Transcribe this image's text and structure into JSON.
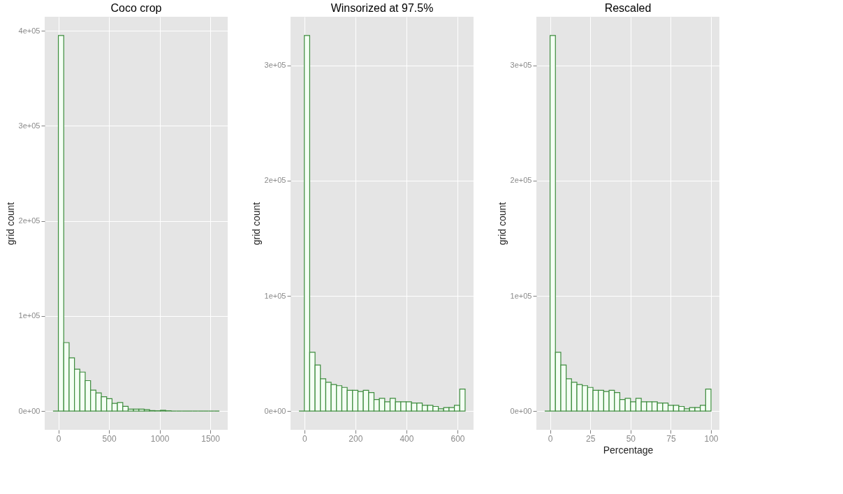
{
  "chart_data": [
    {
      "type": "histogram",
      "title": "Coco crop",
      "ylabel": "grid count",
      "bins": [
        -53,
        0,
        53,
        106,
        159,
        212,
        265,
        318,
        371,
        424,
        477,
        530,
        583,
        636,
        689,
        742,
        795,
        848,
        901,
        954,
        1007,
        1060,
        1113,
        1166,
        1219,
        1272,
        1325,
        1378,
        1431,
        1484,
        1537,
        1590
      ],
      "series": [
        {
          "color": "#3d8b3d",
          "values": [
            0,
            395000,
            72000,
            56000,
            44000,
            41000,
            32000,
            22000,
            19000,
            15000,
            13000,
            8000,
            9000,
            5000,
            2000,
            2000,
            2000,
            1500,
            500,
            300,
            800,
            300,
            0,
            0,
            0,
            0,
            0,
            0,
            0,
            0,
            0
          ]
        }
      ],
      "xlim": [
        -135,
        1672
      ],
      "xticks": [
        0,
        500,
        1000,
        1500
      ],
      "ylim": [
        -19750,
        414750
      ],
      "yticks": [
        {
          "value": 0,
          "label": "0e+00"
        },
        {
          "value": 100000,
          "label": "1e+05"
        },
        {
          "value": 200000,
          "label": "2e+05"
        },
        {
          "value": 300000,
          "label": "3e+05"
        },
        {
          "value": 400000,
          "label": "4e+05"
        }
      ],
      "grid": true
    },
    {
      "type": "histogram",
      "title": "Winsorized at 97.5%",
      "ylabel": "grid count",
      "bins": [
        -21,
        0,
        21,
        42,
        63,
        84,
        105,
        126,
        147,
        168,
        189,
        210,
        231,
        252,
        273,
        294,
        315,
        336,
        357,
        378,
        399,
        420,
        441,
        462,
        483,
        504,
        525,
        546,
        567,
        588,
        609,
        630
      ],
      "series": [
        {
          "color": "#3d8b3d",
          "values": [
            0,
            326000,
            51000,
            40000,
            28000,
            25000,
            23000,
            22000,
            20500,
            18000,
            18000,
            17000,
            18000,
            16000,
            10000,
            11000,
            8000,
            11000,
            8000,
            8000,
            8000,
            7000,
            7000,
            5000,
            5000,
            4000,
            2000,
            3000,
            3000,
            5000,
            19000
          ]
        }
      ],
      "xlim": [
        -54,
        663
      ],
      "xticks": [
        0,
        200,
        400,
        600
      ],
      "ylim": [
        -16300,
        342300
      ],
      "yticks": [
        {
          "value": 0,
          "label": "0e+00"
        },
        {
          "value": 100000,
          "label": "1e+05"
        },
        {
          "value": 200000,
          "label": "2e+05"
        },
        {
          "value": 300000,
          "label": "3e+05"
        }
      ],
      "grid": true
    },
    {
      "type": "histogram",
      "title": "Rescaled",
      "xlabel": "Percentage",
      "ylabel": "grid count",
      "bins": [
        -3.33,
        0,
        3.33,
        6.67,
        10,
        13.33,
        16.67,
        20,
        23.33,
        26.67,
        30,
        33.33,
        36.67,
        40,
        43.33,
        46.67,
        50,
        53.33,
        56.67,
        60,
        63.33,
        66.67,
        70,
        73.33,
        76.67,
        80,
        83.33,
        86.67,
        90,
        93.33,
        96.67,
        100
      ],
      "series": [
        {
          "color": "#3d8b3d",
          "values": [
            0,
            326000,
            51000,
            40000,
            28000,
            25000,
            23000,
            22000,
            20500,
            18000,
            18000,
            17000,
            18000,
            16000,
            10000,
            11000,
            8000,
            11000,
            8000,
            8000,
            8000,
            7000,
            7000,
            5000,
            5000,
            4000,
            2000,
            3000,
            3000,
            5000,
            19000
          ]
        }
      ],
      "xlim": [
        -8.5,
        105.2
      ],
      "xticks": [
        0,
        25,
        50,
        75,
        100
      ],
      "ylim": [
        -16300,
        342300
      ],
      "yticks": [
        {
          "value": 0,
          "label": "0e+00"
        },
        {
          "value": 100000,
          "label": "1e+05"
        },
        {
          "value": 200000,
          "label": "2e+05"
        },
        {
          "value": 300000,
          "label": "3e+05"
        }
      ],
      "grid": true
    }
  ]
}
